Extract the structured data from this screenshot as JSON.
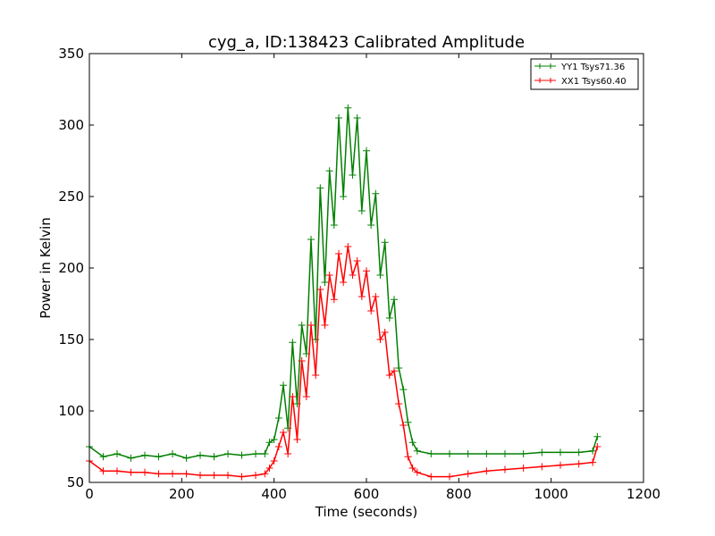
{
  "chart_data": {
    "type": "line",
    "title": "cyg_a, ID:138423 Calibrated Amplitude",
    "xlabel": "Time (seconds)",
    "ylabel": "Power in Kelvin",
    "xlim": [
      0,
      1200
    ],
    "ylim": [
      50,
      350
    ],
    "xticks": [
      0,
      200,
      400,
      600,
      800,
      1000,
      1200
    ],
    "yticks": [
      50,
      100,
      150,
      200,
      250,
      300,
      350
    ],
    "grid": false,
    "legend_position": "top-right",
    "series": [
      {
        "name": "YY1 Tsys71.36",
        "color": "#008000",
        "marker": "+",
        "x": [
          0,
          30,
          60,
          90,
          120,
          150,
          180,
          210,
          240,
          270,
          300,
          330,
          360,
          380,
          390,
          400,
          410,
          420,
          430,
          440,
          450,
          460,
          470,
          480,
          490,
          500,
          510,
          520,
          530,
          540,
          550,
          560,
          570,
          580,
          590,
          600,
          610,
          620,
          630,
          640,
          650,
          660,
          670,
          680,
          690,
          700,
          710,
          740,
          780,
          820,
          860,
          900,
          940,
          980,
          1020,
          1060,
          1090,
          1100
        ],
        "y": [
          75,
          68,
          70,
          67,
          69,
          68,
          70,
          67,
          69,
          68,
          70,
          69,
          70,
          70,
          78,
          80,
          95,
          118,
          88,
          148,
          105,
          160,
          140,
          220,
          150,
          256,
          190,
          268,
          230,
          305,
          250,
          312,
          265,
          305,
          240,
          282,
          230,
          252,
          195,
          218,
          165,
          178,
          130,
          115,
          92,
          78,
          72,
          70,
          70,
          70,
          70,
          70,
          70,
          71,
          71,
          71,
          72,
          82
        ]
      },
      {
        "name": "XX1 Tsys60.40",
        "color": "#ff0000",
        "marker": "+",
        "x": [
          0,
          30,
          60,
          90,
          120,
          150,
          180,
          210,
          240,
          270,
          300,
          330,
          360,
          380,
          390,
          400,
          410,
          420,
          430,
          440,
          450,
          460,
          470,
          480,
          490,
          500,
          510,
          520,
          530,
          540,
          550,
          560,
          570,
          580,
          590,
          600,
          610,
          620,
          630,
          640,
          650,
          660,
          670,
          680,
          690,
          700,
          710,
          740,
          780,
          820,
          860,
          900,
          940,
          980,
          1020,
          1060,
          1090,
          1100
        ],
        "y": [
          65,
          58,
          58,
          57,
          57,
          56,
          56,
          56,
          55,
          55,
          55,
          54,
          55,
          56,
          60,
          65,
          75,
          85,
          70,
          110,
          80,
          135,
          110,
          160,
          125,
          185,
          160,
          195,
          178,
          210,
          190,
          215,
          195,
          205,
          180,
          198,
          170,
          180,
          150,
          155,
          125,
          128,
          105,
          90,
          68,
          60,
          57,
          54,
          54,
          56,
          58,
          59,
          60,
          61,
          62,
          63,
          64,
          75
        ]
      }
    ]
  }
}
